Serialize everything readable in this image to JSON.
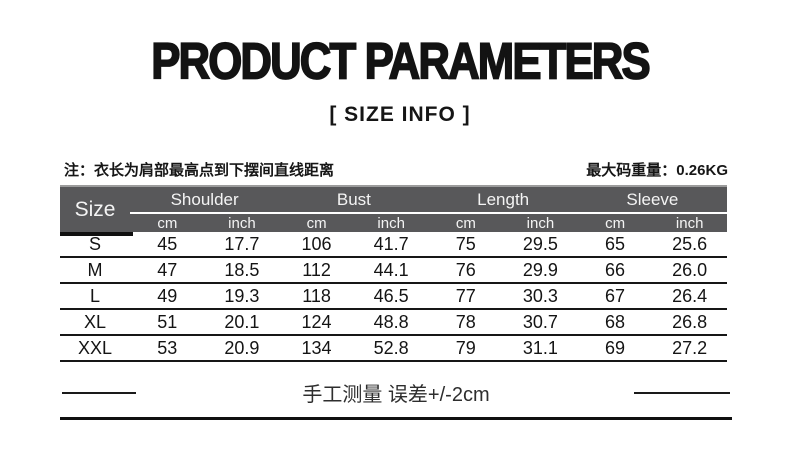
{
  "title": "PRODUCT PARAMETERS",
  "subtitle": "[ SIZE INFO ]",
  "note": {
    "left": "注：衣长为肩部最高点到下摆间直线距离",
    "right": "最大码重量：0.26KG"
  },
  "table": {
    "size_header": "Size",
    "groups": [
      "Shoulder",
      "Bust",
      "Length",
      "Sleeve"
    ],
    "units": [
      "cm",
      "inch",
      "cm",
      "inch",
      "cm",
      "inch",
      "cm",
      "inch"
    ],
    "rows": [
      {
        "size": "S",
        "values": [
          "45",
          "17.7",
          "106",
          "41.7",
          "75",
          "29.5",
          "65",
          "25.6"
        ]
      },
      {
        "size": "M",
        "values": [
          "47",
          "18.5",
          "112",
          "44.1",
          "76",
          "29.9",
          "66",
          "26.0"
        ]
      },
      {
        "size": "L",
        "values": [
          "49",
          "19.3",
          "118",
          "46.5",
          "77",
          "30.3",
          "67",
          "26.4"
        ]
      },
      {
        "size": "XL",
        "values": [
          "51",
          "20.1",
          "124",
          "48.8",
          "78",
          "30.7",
          "68",
          "26.8"
        ]
      },
      {
        "size": "XXL",
        "values": [
          "53",
          "20.9",
          "134",
          "52.8",
          "79",
          "31.1",
          "69",
          "27.2"
        ]
      }
    ]
  },
  "footer": {
    "note": "手工测量 误差+/-2cm"
  },
  "colors": {
    "background": "#ffffff",
    "header_bg": "#58585a",
    "header_text": "#f4f4f4",
    "header_top_edge": "#9c9c9c",
    "rule": "#161616",
    "text": "#1a1a1a",
    "footer_text": "#2e2e2e"
  }
}
